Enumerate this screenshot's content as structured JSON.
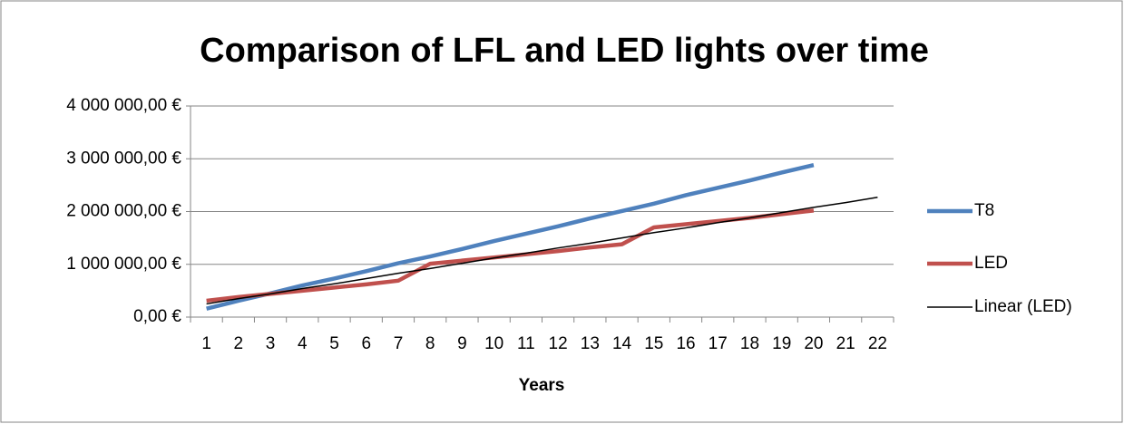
{
  "chart_data": {
    "type": "line",
    "title": "Comparison of LFL and LED lights over time",
    "xlabel": "Years",
    "categories": [
      1,
      2,
      3,
      4,
      5,
      6,
      7,
      8,
      9,
      10,
      11,
      12,
      13,
      14,
      15,
      16,
      17,
      18,
      19,
      20,
      21,
      22
    ],
    "series": [
      {
        "name": "T8",
        "color": "#4f81bd",
        "width": 4.5,
        "values": [
          160000,
          310000,
          450000,
          600000,
          730000,
          870000,
          1020000,
          1150000,
          1290000,
          1440000,
          1580000,
          1720000,
          1870000,
          2010000,
          2150000,
          2310000,
          2450000,
          2590000,
          2740000,
          2880000,
          null,
          null
        ]
      },
      {
        "name": "LED",
        "color": "#c0504d",
        "width": 4.5,
        "values": [
          310000,
          380000,
          440000,
          500000,
          560000,
          620000,
          690000,
          1010000,
          1070000,
          1130000,
          1190000,
          1250000,
          1320000,
          1380000,
          1700000,
          1760000,
          1820000,
          1880000,
          1950000,
          2020000,
          null,
          null
        ]
      },
      {
        "name": "Linear (LED)",
        "color": "#000000",
        "width": 1.5,
        "values": [
          250000,
          350000,
          440000,
          540000,
          630000,
          730000,
          830000,
          920000,
          1020000,
          1120000,
          1210000,
          1310000,
          1400000,
          1500000,
          1600000,
          1690000,
          1790000,
          1880000,
          1980000,
          2080000,
          2170000,
          2270000
        ]
      }
    ],
    "ylim": [
      0,
      4000000
    ],
    "yticks": [
      {
        "value": 0,
        "label": "0,00 €"
      },
      {
        "value": 1000000,
        "label": "1 000 000,00 €"
      },
      {
        "value": 2000000,
        "label": "2 000 000,00 €"
      },
      {
        "value": 3000000,
        "label": "3 000 000,00 €"
      },
      {
        "value": 4000000,
        "label": "4 000 000,00 €"
      }
    ],
    "grid": true,
    "legend": "right"
  }
}
